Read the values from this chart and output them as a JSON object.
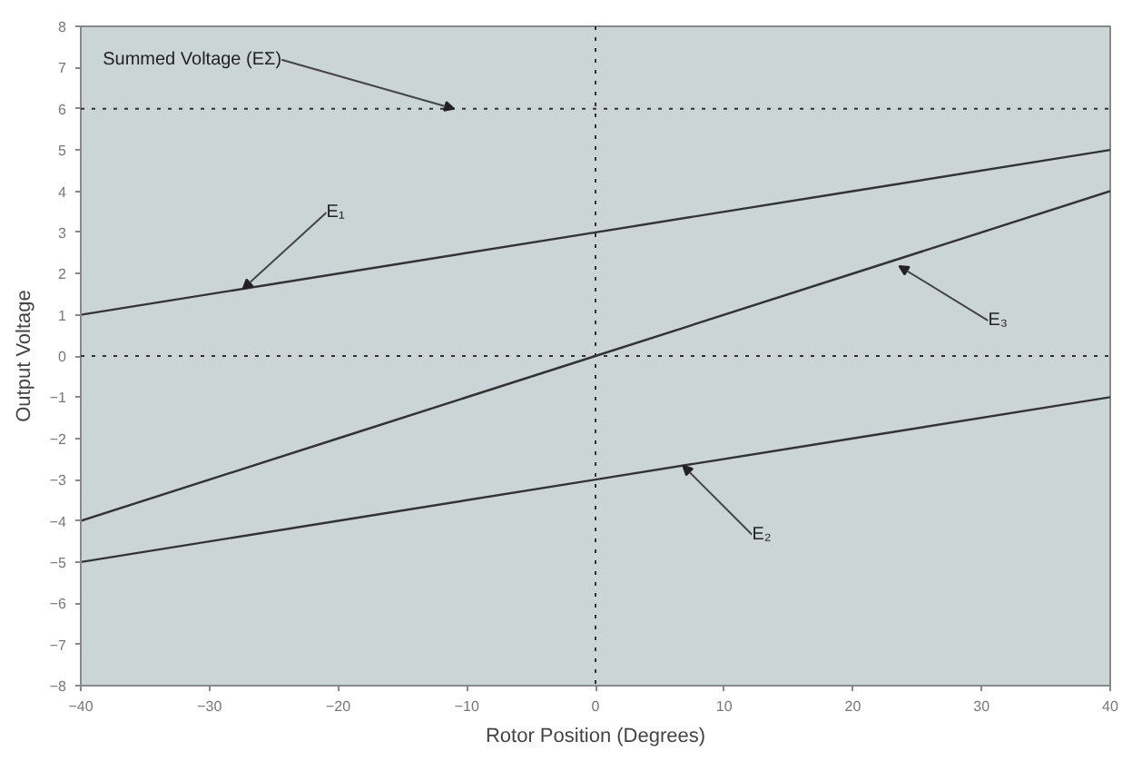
{
  "chart_data": {
    "type": "line",
    "xlabel": "Rotor Position (Degrees)",
    "ylabel": "Output Voltage",
    "xlim": [
      -40,
      40
    ],
    "ylim": [
      -8,
      8
    ],
    "xticks": [
      -40,
      -30,
      -20,
      -10,
      0,
      10,
      20,
      30,
      40
    ],
    "yticks": [
      -8,
      -7,
      -6,
      -5,
      -4,
      -3,
      -2,
      -1,
      0,
      1,
      2,
      3,
      4,
      5,
      6,
      7,
      8
    ],
    "grid": false,
    "line_style": "solid",
    "marker": "none",
    "series": [
      {
        "x": [
          -40,
          -20,
          0,
          20,
          40
        ],
        "values": [
          1,
          2,
          3,
          4,
          5
        ],
        "color": "#333333"
      },
      {
        "x": [
          -40,
          -20,
          0,
          20,
          40
        ],
        "values": [
          -5,
          -4,
          -3,
          -2,
          -1
        ],
        "color": "#333333"
      },
      {
        "x": [
          -40,
          -20,
          0,
          20,
          40
        ],
        "values": [
          -4,
          -2,
          0,
          2,
          4
        ],
        "color": "#333333"
      }
    ],
    "ref_lines": [
      {
        "axis": "y",
        "value": 6,
        "color": "#333333",
        "line_style": "dotted"
      },
      {
        "axis": "y",
        "value": 0,
        "color": "#333333",
        "line_style": "dotted"
      },
      {
        "axis": "x",
        "value": 0,
        "color": "#333333",
        "line_style": "dotted"
      }
    ],
    "annotations": [
      {
        "text": "Summed Voltage (EΣ)",
        "x": -11,
        "y": 6
      },
      {
        "text": "E₁",
        "x": -27.4,
        "y": 1.63
      },
      {
        "text": "E₃",
        "x": 23.6,
        "y": 2.18
      },
      {
        "text": "E₂",
        "x": 6.8,
        "y": -2.66
      }
    ]
  }
}
